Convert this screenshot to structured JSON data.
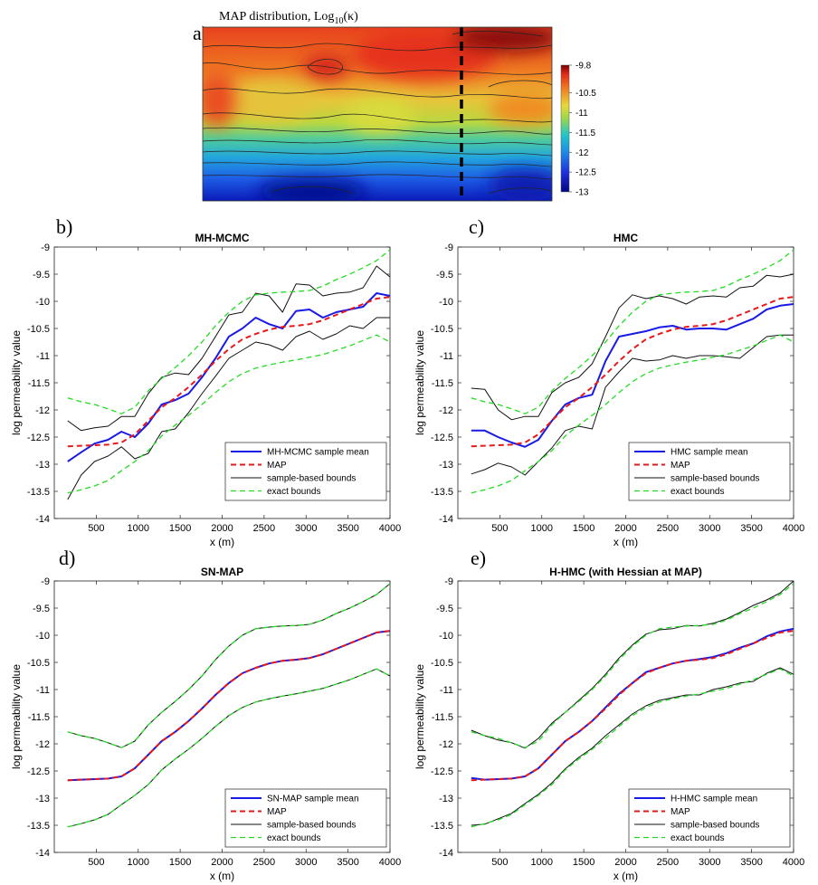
{
  "figure": {
    "panel_a": {
      "letter": "a)",
      "title": "MAP distribution, Log",
      "title_sub": "10",
      "title_arg": "(κ)",
      "colorbar_ticks": [
        "-9.8",
        "-10.5",
        "-11",
        "-11.5",
        "-12",
        "-12.5",
        "-13"
      ],
      "colors": {
        "dark_red": "#7a0000",
        "red": "#e8281e",
        "orange": "#ef7a22",
        "yellow": "#e7d83a",
        "cyan": "#22c6c8",
        "blue": "#1e5ee6",
        "navy": "#020583"
      }
    },
    "series_colors": {
      "mean": "#1a1ae6",
      "map": "#e61a1a",
      "sample_bounds": "#111111",
      "exact_bounds": "#22dd22"
    }
  },
  "chart_data": [
    {
      "panel": "b)",
      "type": "line",
      "title": "MH-MCMC",
      "xlabel": "x (m)",
      "ylabel": "log permeability value",
      "xlim": [
        0,
        4000
      ],
      "ylim": [
        -14,
        -9
      ],
      "xticks": [
        "500",
        "1000",
        "1500",
        "2000",
        "2500",
        "3000",
        "3500",
        "4000"
      ],
      "yticks": [
        "-9",
        "-9.5",
        "-10",
        "-10.5",
        "-11",
        "-11.5",
        "-12",
        "-12.5",
        "-13",
        "-13.5",
        "-14"
      ],
      "legend": [
        "MH-MCMC sample mean",
        "MAP",
        "sample-based bounds",
        "exact bounds"
      ],
      "legend_position": "bottom-right",
      "x": [
        160,
        320,
        480,
        640,
        800,
        960,
        1120,
        1280,
        1440,
        1600,
        1760,
        1920,
        2080,
        2240,
        2400,
        2560,
        2720,
        2880,
        3040,
        3200,
        3360,
        3520,
        3680,
        3840,
        4000
      ],
      "series": [
        {
          "name": "MH-MCMC sample mean",
          "values": [
            -12.95,
            -12.78,
            -12.62,
            -12.55,
            -12.4,
            -12.5,
            -12.25,
            -11.9,
            -11.82,
            -11.7,
            -11.4,
            -11.05,
            -10.65,
            -10.5,
            -10.3,
            -10.42,
            -10.5,
            -10.18,
            -10.15,
            -10.3,
            -10.2,
            -10.15,
            -10.1,
            -9.85,
            -9.9
          ]
        },
        {
          "name": "MAP",
          "values": [
            -12.67,
            -12.66,
            -12.65,
            -12.64,
            -12.6,
            -12.45,
            -12.2,
            -11.95,
            -11.78,
            -11.58,
            -11.35,
            -11.1,
            -10.88,
            -10.7,
            -10.6,
            -10.52,
            -10.47,
            -10.45,
            -10.42,
            -10.35,
            -10.25,
            -10.15,
            -10.05,
            -9.95,
            -9.92
          ]
        },
        {
          "name": "sample-based bounds",
          "values": [
            -12.2,
            -12.38,
            -12.33,
            -12.3,
            -12.12,
            -12.12,
            -11.7,
            -11.4,
            -11.32,
            -11.35,
            -11.05,
            -10.65,
            -10.25,
            -10.2,
            -9.85,
            -9.9,
            -10.2,
            -9.68,
            -9.7,
            -9.9,
            -9.85,
            -9.83,
            -9.75,
            -9.35,
            -9.55
          ]
        },
        {
          "name": "sample-based bounds",
          "values": [
            -13.65,
            -13.2,
            -12.95,
            -12.85,
            -12.68,
            -12.9,
            -12.8,
            -12.4,
            -12.35,
            -12.05,
            -11.7,
            -11.38,
            -11.05,
            -10.9,
            -10.75,
            -10.8,
            -10.9,
            -10.65,
            -10.55,
            -10.7,
            -10.6,
            -10.45,
            -10.5,
            -10.3,
            -10.3
          ]
        },
        {
          "name": "exact bounds",
          "values": [
            -11.78,
            -11.85,
            -11.9,
            -11.98,
            -12.07,
            -11.95,
            -11.65,
            -11.42,
            -11.22,
            -11.0,
            -10.75,
            -10.45,
            -10.2,
            -10.0,
            -9.88,
            -9.85,
            -9.83,
            -9.82,
            -9.8,
            -9.72,
            -9.6,
            -9.5,
            -9.38,
            -9.25,
            -9.05
          ]
        },
        {
          "name": "exact bounds",
          "values": [
            -13.53,
            -13.47,
            -13.4,
            -13.3,
            -13.12,
            -12.95,
            -12.75,
            -12.48,
            -12.28,
            -12.1,
            -11.9,
            -11.68,
            -11.48,
            -11.33,
            -11.23,
            -11.17,
            -11.12,
            -11.08,
            -11.03,
            -10.98,
            -10.9,
            -10.82,
            -10.72,
            -10.62,
            -10.75
          ]
        }
      ]
    },
    {
      "panel": "c)",
      "type": "line",
      "title": "HMC",
      "xlabel": "x (m)",
      "ylabel": "log permeability value",
      "xlim": [
        0,
        4000
      ],
      "ylim": [
        -14,
        -9
      ],
      "xticks": [
        "500",
        "1000",
        "1500",
        "2000",
        "2500",
        "3000",
        "3500",
        "4000"
      ],
      "yticks": [
        "-9",
        "-9.5",
        "-10",
        "-10.5",
        "-11",
        "-11.5",
        "-12",
        "-12.5",
        "-13",
        "-13.5",
        "-14"
      ],
      "legend": [
        "HMC sample mean",
        "MAP",
        "sample-based bounds",
        "exact bounds"
      ],
      "legend_position": "bottom-right",
      "x": [
        160,
        320,
        480,
        640,
        800,
        960,
        1120,
        1280,
        1440,
        1600,
        1760,
        1920,
        2080,
        2240,
        2400,
        2560,
        2720,
        2880,
        3040,
        3200,
        3360,
        3520,
        3680,
        3840,
        4000
      ],
      "series": [
        {
          "name": "HMC sample mean",
          "values": [
            -12.38,
            -12.38,
            -12.5,
            -12.6,
            -12.68,
            -12.55,
            -12.2,
            -11.9,
            -11.78,
            -11.72,
            -11.1,
            -10.65,
            -10.6,
            -10.55,
            -10.48,
            -10.45,
            -10.52,
            -10.5,
            -10.5,
            -10.52,
            -10.42,
            -10.32,
            -10.15,
            -10.08,
            -10.05
          ]
        },
        {
          "name": "MAP",
          "values": [
            -12.67,
            -12.66,
            -12.65,
            -12.64,
            -12.6,
            -12.45,
            -12.2,
            -11.95,
            -11.78,
            -11.58,
            -11.35,
            -11.1,
            -10.88,
            -10.7,
            -10.6,
            -10.52,
            -10.47,
            -10.45,
            -10.42,
            -10.35,
            -10.25,
            -10.15,
            -10.05,
            -9.95,
            -9.92
          ]
        },
        {
          "name": "sample-based bounds",
          "values": [
            -11.6,
            -11.62,
            -12.0,
            -12.18,
            -12.12,
            -12.12,
            -11.68,
            -11.5,
            -11.4,
            -11.15,
            -10.65,
            -10.12,
            -9.88,
            -9.95,
            -9.9,
            -9.95,
            -10.05,
            -9.92,
            -9.9,
            -9.92,
            -9.75,
            -9.72,
            -9.52,
            -9.55,
            -9.5
          ]
        },
        {
          "name": "sample-based bounds",
          "values": [
            -13.18,
            -13.1,
            -12.98,
            -13.05,
            -13.2,
            -12.95,
            -12.7,
            -12.38,
            -12.3,
            -12.35,
            -11.58,
            -11.3,
            -11.05,
            -11.1,
            -11.08,
            -11.0,
            -11.05,
            -11.0,
            -11.0,
            -11.02,
            -11.05,
            -10.85,
            -10.65,
            -10.62,
            -10.62
          ]
        },
        {
          "name": "exact bounds",
          "values": [
            -11.78,
            -11.85,
            -11.9,
            -11.98,
            -12.07,
            -11.95,
            -11.65,
            -11.42,
            -11.22,
            -11.0,
            -10.75,
            -10.45,
            -10.2,
            -10.0,
            -9.88,
            -9.85,
            -9.83,
            -9.82,
            -9.8,
            -9.72,
            -9.6,
            -9.5,
            -9.38,
            -9.25,
            -9.05
          ]
        },
        {
          "name": "exact bounds",
          "values": [
            -13.53,
            -13.47,
            -13.4,
            -13.3,
            -13.12,
            -12.95,
            -12.75,
            -12.48,
            -12.28,
            -12.1,
            -11.9,
            -11.68,
            -11.48,
            -11.33,
            -11.23,
            -11.17,
            -11.12,
            -11.08,
            -11.03,
            -10.98,
            -10.9,
            -10.82,
            -10.72,
            -10.62,
            -10.75
          ]
        }
      ]
    },
    {
      "panel": "d)",
      "type": "line",
      "title": "SN-MAP",
      "xlabel": "x (m)",
      "ylabel": "log permeability value",
      "xlim": [
        0,
        4000
      ],
      "ylim": [
        -14,
        -9
      ],
      "xticks": [
        "500",
        "1000",
        "1500",
        "2000",
        "2500",
        "3000",
        "3500",
        "4000"
      ],
      "yticks": [
        "-9",
        "-9.5",
        "-10",
        "-10.5",
        "-11",
        "-11.5",
        "-12",
        "-12.5",
        "-13",
        "-13.5",
        "-14"
      ],
      "legend": [
        "SN-MAP sample mean",
        "MAP",
        "sample-based bounds",
        "exact bounds"
      ],
      "legend_position": "bottom-right",
      "x": [
        160,
        320,
        480,
        640,
        800,
        960,
        1120,
        1280,
        1440,
        1600,
        1760,
        1920,
        2080,
        2240,
        2400,
        2560,
        2720,
        2880,
        3040,
        3200,
        3360,
        3520,
        3680,
        3840,
        4000
      ],
      "series": [
        {
          "name": "SN-MAP sample mean",
          "values": [
            -12.67,
            -12.66,
            -12.65,
            -12.64,
            -12.6,
            -12.45,
            -12.2,
            -11.95,
            -11.78,
            -11.58,
            -11.35,
            -11.1,
            -10.88,
            -10.7,
            -10.6,
            -10.52,
            -10.47,
            -10.45,
            -10.42,
            -10.35,
            -10.25,
            -10.15,
            -10.05,
            -9.95,
            -9.92
          ]
        },
        {
          "name": "MAP",
          "values": [
            -12.67,
            -12.66,
            -12.65,
            -12.64,
            -12.6,
            -12.45,
            -12.2,
            -11.95,
            -11.78,
            -11.58,
            -11.35,
            -11.1,
            -10.88,
            -10.7,
            -10.6,
            -10.52,
            -10.47,
            -10.45,
            -10.42,
            -10.35,
            -10.25,
            -10.15,
            -10.05,
            -9.95,
            -9.92
          ]
        },
        {
          "name": "sample-based bounds",
          "values": [
            -11.78,
            -11.85,
            -11.9,
            -11.98,
            -12.07,
            -11.95,
            -11.65,
            -11.42,
            -11.22,
            -11.0,
            -10.75,
            -10.45,
            -10.2,
            -10.0,
            -9.88,
            -9.85,
            -9.83,
            -9.82,
            -9.8,
            -9.72,
            -9.6,
            -9.5,
            -9.38,
            -9.25,
            -9.05
          ]
        },
        {
          "name": "sample-based bounds",
          "values": [
            -13.53,
            -13.47,
            -13.4,
            -13.3,
            -13.12,
            -12.95,
            -12.75,
            -12.48,
            -12.28,
            -12.1,
            -11.9,
            -11.68,
            -11.48,
            -11.33,
            -11.23,
            -11.17,
            -11.12,
            -11.08,
            -11.03,
            -10.98,
            -10.9,
            -10.82,
            -10.72,
            -10.62,
            -10.75
          ]
        },
        {
          "name": "exact bounds",
          "values": [
            -11.78,
            -11.85,
            -11.9,
            -11.98,
            -12.07,
            -11.95,
            -11.65,
            -11.42,
            -11.22,
            -11.0,
            -10.75,
            -10.45,
            -10.2,
            -10.0,
            -9.88,
            -9.85,
            -9.83,
            -9.82,
            -9.8,
            -9.72,
            -9.6,
            -9.5,
            -9.38,
            -9.25,
            -9.05
          ]
        },
        {
          "name": "exact bounds",
          "values": [
            -13.53,
            -13.47,
            -13.4,
            -13.3,
            -13.12,
            -12.95,
            -12.75,
            -12.48,
            -12.28,
            -12.1,
            -11.9,
            -11.68,
            -11.48,
            -11.33,
            -11.23,
            -11.17,
            -11.12,
            -11.08,
            -11.03,
            -10.98,
            -10.9,
            -10.82,
            -10.72,
            -10.62,
            -10.75
          ]
        }
      ]
    },
    {
      "panel": "e)",
      "type": "line",
      "title": "H-HMC (with Hessian at MAP)",
      "xlabel": "x (m)",
      "ylabel": "log permeability value",
      "xlim": [
        0,
        4000
      ],
      "ylim": [
        -14,
        -9
      ],
      "xticks": [
        "500",
        "1000",
        "1500",
        "2000",
        "2500",
        "3000",
        "3500",
        "4000"
      ],
      "yticks": [
        "-9",
        "-9.5",
        "-10",
        "-10.5",
        "-11",
        "-11.5",
        "-12",
        "-12.5",
        "-13",
        "-13.5",
        "-14"
      ],
      "legend": [
        "H-HMC sample mean",
        "MAP",
        "sample-based bounds",
        "exact bounds"
      ],
      "legend_position": "bottom-right",
      "x": [
        160,
        320,
        480,
        640,
        800,
        960,
        1120,
        1280,
        1440,
        1600,
        1760,
        1920,
        2080,
        2240,
        2400,
        2560,
        2720,
        2880,
        3040,
        3200,
        3360,
        3520,
        3680,
        3840,
        4000
      ],
      "series": [
        {
          "name": "H-HMC sample mean",
          "values": [
            -12.63,
            -12.66,
            -12.65,
            -12.64,
            -12.6,
            -12.45,
            -12.2,
            -11.95,
            -11.78,
            -11.58,
            -11.33,
            -11.08,
            -10.88,
            -10.68,
            -10.6,
            -10.52,
            -10.47,
            -10.44,
            -10.4,
            -10.33,
            -10.23,
            -10.15,
            -10.02,
            -9.93,
            -9.88
          ]
        },
        {
          "name": "MAP",
          "values": [
            -12.67,
            -12.66,
            -12.65,
            -12.64,
            -12.6,
            -12.45,
            -12.2,
            -11.95,
            -11.78,
            -11.58,
            -11.35,
            -11.1,
            -10.88,
            -10.7,
            -10.6,
            -10.52,
            -10.47,
            -10.45,
            -10.42,
            -10.35,
            -10.25,
            -10.15,
            -10.05,
            -9.95,
            -9.92
          ]
        },
        {
          "name": "sample-based bounds",
          "values": [
            -11.75,
            -11.85,
            -11.93,
            -11.98,
            -12.08,
            -11.9,
            -11.62,
            -11.42,
            -11.2,
            -10.98,
            -10.72,
            -10.42,
            -10.18,
            -9.98,
            -9.9,
            -9.88,
            -9.82,
            -9.83,
            -9.78,
            -9.7,
            -9.58,
            -9.45,
            -9.35,
            -9.22,
            -9.0
          ]
        },
        {
          "name": "sample-based bounds",
          "values": [
            -13.5,
            -13.48,
            -13.38,
            -13.28,
            -13.1,
            -12.93,
            -12.72,
            -12.46,
            -12.25,
            -12.08,
            -11.85,
            -11.65,
            -11.45,
            -11.3,
            -11.2,
            -11.15,
            -11.1,
            -11.1,
            -11.0,
            -10.95,
            -10.88,
            -10.85,
            -10.7,
            -10.6,
            -10.72
          ]
        },
        {
          "name": "exact bounds",
          "values": [
            -11.78,
            -11.85,
            -11.9,
            -11.98,
            -12.07,
            -11.95,
            -11.65,
            -11.42,
            -11.22,
            -11.0,
            -10.75,
            -10.45,
            -10.2,
            -10.0,
            -9.88,
            -9.85,
            -9.83,
            -9.82,
            -9.8,
            -9.72,
            -9.6,
            -9.5,
            -9.38,
            -9.25,
            -9.05
          ]
        },
        {
          "name": "exact bounds",
          "values": [
            -13.53,
            -13.47,
            -13.4,
            -13.3,
            -13.12,
            -12.95,
            -12.75,
            -12.48,
            -12.28,
            -12.1,
            -11.9,
            -11.68,
            -11.48,
            -11.33,
            -11.23,
            -11.17,
            -11.12,
            -11.08,
            -11.03,
            -10.98,
            -10.9,
            -10.82,
            -10.72,
            -10.62,
            -10.75
          ]
        }
      ]
    }
  ]
}
